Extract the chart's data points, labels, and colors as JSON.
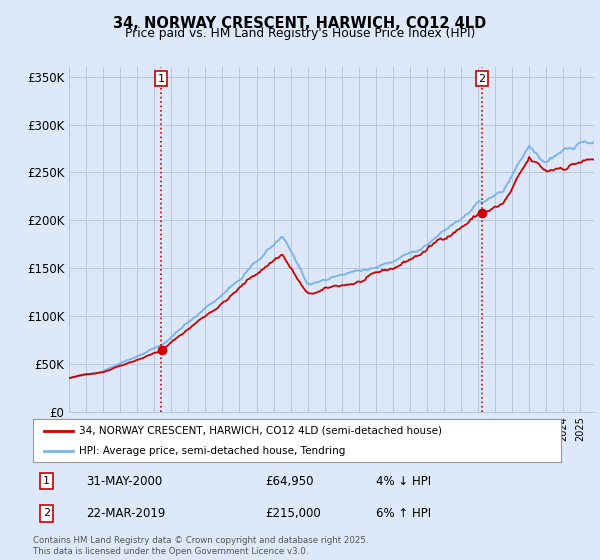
{
  "title": "34, NORWAY CRESCENT, HARWICH, CO12 4LD",
  "subtitle": "Price paid vs. HM Land Registry's House Price Index (HPI)",
  "ylim": [
    0,
    360000
  ],
  "yticks": [
    0,
    50000,
    100000,
    150000,
    200000,
    250000,
    300000,
    350000
  ],
  "ytick_labels": [
    "£0",
    "£50K",
    "£100K",
    "£150K",
    "£200K",
    "£250K",
    "£300K",
    "£350K"
  ],
  "x_start_year": 1995,
  "x_end_year": 2025,
  "hpi_color": "#7eb4e8",
  "price_color": "#cc0000",
  "vline_color": "#cc0000",
  "sale1_x": 2000.41,
  "sale2_x": 2019.22,
  "sale1_price": 64950,
  "sale2_price": 215000,
  "legend_line1": "34, NORWAY CRESCENT, HARWICH, CO12 4LD (semi-detached house)",
  "legend_line2": "HPI: Average price, semi-detached house, Tendring",
  "annotation1_num": "1",
  "annotation1_date": "31-MAY-2000",
  "annotation1_price": "£64,950",
  "annotation1_hpi": "4% ↓ HPI",
  "annotation2_num": "2",
  "annotation2_date": "22-MAR-2019",
  "annotation2_price": "£215,000",
  "annotation2_hpi": "6% ↑ HPI",
  "footer": "Contains HM Land Registry data © Crown copyright and database right 2025.\nThis data is licensed under the Open Government Licence v3.0.",
  "bg_color": "#dde8f8",
  "plot_bg_color": "#dce8f8",
  "grid_color": "#b8c8dc"
}
